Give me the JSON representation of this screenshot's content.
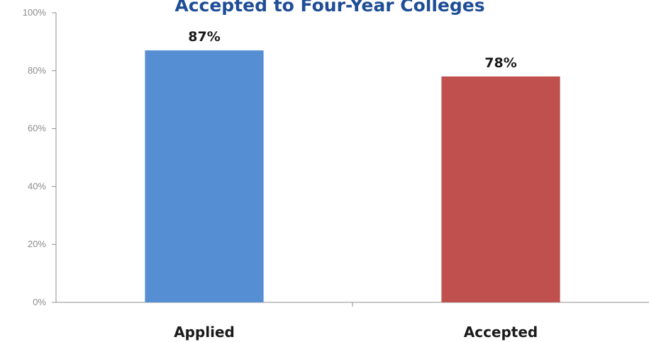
{
  "chart_data": {
    "type": "bar",
    "title": "Accepted to Four-Year Colleges",
    "categories": [
      "Applied",
      "Accepted"
    ],
    "values": [
      87,
      78
    ],
    "data_labels": [
      "87%",
      "78%"
    ],
    "bar_colors": [
      "#568ed4",
      "#c0504d"
    ],
    "ylim": [
      0,
      100
    ],
    "yticks": [
      0,
      20,
      40,
      60,
      80,
      100
    ],
    "ytick_labels": [
      "0%",
      "20%",
      "40%",
      "60%",
      "80%",
      "100%"
    ],
    "xlabel": "",
    "ylabel": "",
    "grid": false,
    "legend": false
  }
}
